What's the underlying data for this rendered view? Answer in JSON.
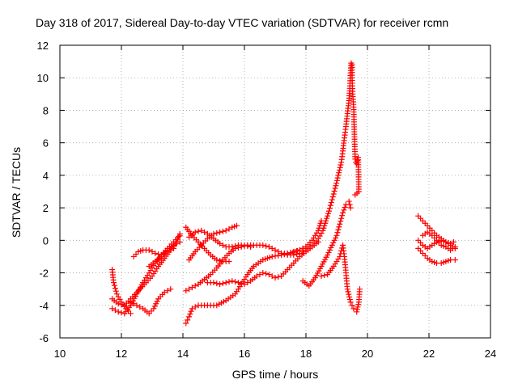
{
  "chart_data": {
    "type": "scatter",
    "title": "Day 318 of 2017, Sidereal Day-to-day VTEC variation (SDTVAR) for receiver rcmn",
    "xlabel": "GPS time / hours",
    "ylabel": "SDTVAR / TECUs",
    "xlim": [
      10,
      24
    ],
    "ylim": [
      -6,
      12
    ],
    "xticks": [
      10,
      12,
      14,
      16,
      18,
      20,
      22,
      24
    ],
    "yticks": [
      -6,
      -4,
      -2,
      0,
      2,
      4,
      6,
      8,
      10,
      12
    ],
    "grid": true,
    "marker": "+",
    "color": "#ff0000",
    "series": [
      {
        "name": "s1",
        "points": [
          [
            11.7,
            -1.8
          ],
          [
            11.75,
            -2.6
          ],
          [
            11.85,
            -3.3
          ],
          [
            12.0,
            -3.8
          ],
          [
            12.15,
            -4.2
          ],
          [
            12.3,
            -4.5
          ]
        ]
      },
      {
        "name": "s2",
        "points": [
          [
            11.7,
            -3.6
          ],
          [
            11.9,
            -3.9
          ],
          [
            12.1,
            -4.0
          ],
          [
            12.3,
            -3.6
          ],
          [
            12.5,
            -3.2
          ],
          [
            12.8,
            -2.6
          ],
          [
            13.0,
            -2.2
          ],
          [
            13.2,
            -1.6
          ],
          [
            13.4,
            -1.1
          ],
          [
            13.6,
            -0.6
          ],
          [
            13.8,
            -0.1
          ],
          [
            13.9,
            0.4
          ]
        ]
      },
      {
        "name": "s3",
        "points": [
          [
            11.7,
            -4.2
          ],
          [
            11.9,
            -4.4
          ],
          [
            12.1,
            -4.5
          ],
          [
            12.3,
            -4.0
          ],
          [
            12.5,
            -3.3
          ],
          [
            12.7,
            -2.6
          ],
          [
            12.9,
            -2.0
          ],
          [
            13.1,
            -1.4
          ],
          [
            13.3,
            -0.9
          ],
          [
            13.5,
            -0.5
          ],
          [
            13.7,
            -0.1
          ],
          [
            13.9,
            0.3
          ]
        ]
      },
      {
        "name": "s4",
        "points": [
          [
            12.4,
            -1.0
          ],
          [
            12.55,
            -0.7
          ],
          [
            12.7,
            -0.6
          ],
          [
            12.9,
            -0.6
          ],
          [
            13.1,
            -0.8
          ],
          [
            13.3,
            -0.9
          ],
          [
            13.5,
            -0.7
          ],
          [
            13.7,
            -0.5
          ]
        ]
      },
      {
        "name": "s5",
        "points": [
          [
            12.3,
            -3.8
          ],
          [
            12.5,
            -4.0
          ],
          [
            12.7,
            -4.2
          ],
          [
            12.9,
            -4.5
          ],
          [
            13.05,
            -4.2
          ],
          [
            13.2,
            -3.6
          ],
          [
            13.4,
            -3.2
          ],
          [
            13.6,
            -3.0
          ]
        ]
      },
      {
        "name": "s6",
        "points": [
          [
            12.9,
            -1.6
          ],
          [
            13.1,
            -1.3
          ],
          [
            13.3,
            -1.0
          ],
          [
            13.5,
            -0.6
          ],
          [
            13.7,
            -0.3
          ],
          [
            13.9,
            -0.1
          ]
        ]
      },
      {
        "name": "s7",
        "points": [
          [
            14.1,
            -5.1
          ],
          [
            14.2,
            -4.7
          ],
          [
            14.3,
            -4.2
          ],
          [
            14.5,
            -4.0
          ],
          [
            14.8,
            -4.0
          ],
          [
            15.1,
            -4.0
          ],
          [
            15.4,
            -3.7
          ],
          [
            15.7,
            -3.3
          ],
          [
            15.9,
            -2.7
          ],
          [
            16.1,
            -2.1
          ],
          [
            16.3,
            -1.6
          ],
          [
            16.6,
            -1.2
          ],
          [
            16.9,
            -1.0
          ],
          [
            17.2,
            -0.9
          ],
          [
            17.5,
            -0.8
          ],
          [
            17.8,
            -0.6
          ],
          [
            18.0,
            -0.4
          ]
        ]
      },
      {
        "name": "s8",
        "points": [
          [
            14.1,
            -3.1
          ],
          [
            14.3,
            -2.9
          ],
          [
            14.5,
            -2.7
          ],
          [
            14.7,
            -2.4
          ],
          [
            14.9,
            -2.1
          ],
          [
            15.1,
            -1.7
          ],
          [
            15.3,
            -1.2
          ],
          [
            15.5,
            -0.8
          ],
          [
            15.7,
            -0.5
          ],
          [
            15.9,
            -0.4
          ],
          [
            16.1,
            -0.3
          ],
          [
            16.3,
            -0.3
          ]
        ]
      },
      {
        "name": "s9",
        "points": [
          [
            14.1,
            0.8
          ],
          [
            14.3,
            0.3
          ],
          [
            14.5,
            -0.1
          ],
          [
            14.7,
            -0.5
          ],
          [
            14.9,
            -0.9
          ],
          [
            15.1,
            -1.2
          ],
          [
            15.3,
            -1.3
          ],
          [
            15.5,
            -1.3
          ]
        ]
      },
      {
        "name": "s10",
        "points": [
          [
            14.2,
            -1.2
          ],
          [
            14.4,
            -0.7
          ],
          [
            14.6,
            -0.3
          ],
          [
            14.8,
            0.1
          ],
          [
            15.0,
            0.4
          ],
          [
            15.2,
            0.5
          ],
          [
            15.4,
            0.6
          ],
          [
            15.6,
            0.8
          ],
          [
            15.75,
            0.9
          ]
        ]
      },
      {
        "name": "s11",
        "points": [
          [
            14.2,
            0.2
          ],
          [
            14.4,
            0.5
          ],
          [
            14.6,
            0.6
          ],
          [
            14.8,
            0.4
          ],
          [
            15.0,
            0.1
          ],
          [
            15.2,
            -0.2
          ],
          [
            15.4,
            -0.4
          ],
          [
            15.6,
            -0.4
          ],
          [
            15.8,
            -0.3
          ],
          [
            16.0,
            -0.3
          ],
          [
            16.2,
            -0.4
          ]
        ]
      },
      {
        "name": "s12",
        "points": [
          [
            14.8,
            -2.6
          ],
          [
            15.0,
            -2.6
          ],
          [
            15.2,
            -2.7
          ],
          [
            15.4,
            -2.6
          ],
          [
            15.6,
            -2.5
          ],
          [
            15.8,
            -2.6
          ],
          [
            16.0,
            -2.7
          ],
          [
            16.2,
            -2.5
          ],
          [
            16.4,
            -2.2
          ],
          [
            16.6,
            -2.0
          ],
          [
            16.8,
            -2.1
          ],
          [
            17.0,
            -2.3
          ],
          [
            17.2,
            -2.2
          ],
          [
            17.4,
            -1.8
          ],
          [
            17.6,
            -1.4
          ],
          [
            17.8,
            -1.0
          ],
          [
            18.0,
            -0.7
          ],
          [
            18.2,
            -0.4
          ],
          [
            18.4,
            -0.1
          ]
        ]
      },
      {
        "name": "s13",
        "points": [
          [
            16.4,
            -0.3
          ],
          [
            16.6,
            -0.3
          ],
          [
            16.8,
            -0.4
          ],
          [
            17.0,
            -0.6
          ],
          [
            17.2,
            -0.8
          ],
          [
            17.4,
            -0.9
          ],
          [
            17.6,
            -0.9
          ],
          [
            17.8,
            -0.8
          ],
          [
            18.0,
            -0.6
          ],
          [
            18.2,
            -0.3
          ],
          [
            18.4,
            0.1
          ],
          [
            18.55,
            0.6
          ],
          [
            18.65,
            1.2
          ],
          [
            18.75,
            1.8
          ],
          [
            18.85,
            2.5
          ],
          [
            18.95,
            3.2
          ],
          [
            19.05,
            4.0
          ],
          [
            19.15,
            4.8
          ],
          [
            19.2,
            5.5
          ],
          [
            19.25,
            6.3
          ],
          [
            19.3,
            7.0
          ],
          [
            19.35,
            7.8
          ],
          [
            19.4,
            8.6
          ],
          [
            19.43,
            9.5
          ],
          [
            19.45,
            10.3
          ],
          [
            19.47,
            10.9
          ]
        ]
      },
      {
        "name": "s14",
        "points": [
          [
            17.2,
            -0.8
          ],
          [
            17.4,
            -0.8
          ],
          [
            17.6,
            -0.7
          ],
          [
            17.8,
            -0.6
          ],
          [
            18.0,
            -0.4
          ],
          [
            18.2,
            0.0
          ],
          [
            18.4,
            0.6
          ],
          [
            18.5,
            1.2
          ]
        ]
      },
      {
        "name": "s15",
        "points": [
          [
            17.9,
            -2.5
          ],
          [
            18.1,
            -2.8
          ],
          [
            18.3,
            -2.3
          ],
          [
            18.5,
            -1.6
          ],
          [
            18.7,
            -0.9
          ],
          [
            18.85,
            -0.3
          ],
          [
            19.0,
            0.3
          ],
          [
            19.1,
            1.0
          ],
          [
            19.2,
            1.7
          ],
          [
            19.3,
            2.2
          ],
          [
            19.4,
            2.4
          ],
          [
            19.45,
            2.0
          ]
        ]
      },
      {
        "name": "s16",
        "points": [
          [
            18.5,
            -2.2
          ],
          [
            18.7,
            -2.1
          ],
          [
            18.9,
            -1.6
          ],
          [
            19.1,
            -1.0
          ],
          [
            19.2,
            -0.3
          ],
          [
            19.25,
            -1.0
          ],
          [
            19.3,
            -2.0
          ],
          [
            19.35,
            -3.0
          ],
          [
            19.45,
            -3.8
          ],
          [
            19.55,
            -4.2
          ],
          [
            19.65,
            -4.4
          ],
          [
            19.72,
            -3.8
          ],
          [
            19.75,
            -3.0
          ]
        ]
      },
      {
        "name": "s17",
        "points": [
          [
            19.5,
            10.8
          ],
          [
            19.5,
            10.0
          ],
          [
            19.52,
            9.0
          ],
          [
            19.55,
            8.2
          ],
          [
            19.6,
            5.0
          ],
          [
            19.62,
            4.8
          ],
          [
            19.65,
            4.7
          ],
          [
            19.7,
            5.1
          ],
          [
            19.72,
            3.0
          ],
          [
            19.6,
            2.8
          ]
        ]
      },
      {
        "name": "s18",
        "points": [
          [
            21.65,
            1.5
          ],
          [
            21.8,
            1.2
          ],
          [
            21.95,
            0.9
          ],
          [
            22.1,
            0.6
          ],
          [
            22.25,
            0.3
          ],
          [
            22.4,
            0.1
          ],
          [
            22.55,
            -0.1
          ],
          [
            22.7,
            -0.2
          ],
          [
            22.8,
            -0.1
          ]
        ]
      },
      {
        "name": "s19",
        "points": [
          [
            21.65,
            -0.5
          ],
          [
            21.8,
            -0.8
          ],
          [
            21.95,
            -1.1
          ],
          [
            22.1,
            -1.3
          ],
          [
            22.25,
            -1.4
          ],
          [
            22.4,
            -1.4
          ],
          [
            22.55,
            -1.3
          ],
          [
            22.7,
            -1.2
          ],
          [
            22.85,
            -1.2
          ]
        ]
      },
      {
        "name": "s20",
        "points": [
          [
            21.65,
            0.0
          ],
          [
            21.8,
            -0.3
          ],
          [
            21.95,
            -0.5
          ],
          [
            22.1,
            -0.3
          ],
          [
            22.25,
            -0.1
          ],
          [
            22.4,
            0.0
          ],
          [
            22.55,
            -0.1
          ],
          [
            22.7,
            -0.3
          ],
          [
            22.85,
            -0.5
          ]
        ]
      },
      {
        "name": "s21",
        "points": [
          [
            21.8,
            0.3
          ],
          [
            21.95,
            0.5
          ],
          [
            22.1,
            0.3
          ],
          [
            22.25,
            0.0
          ],
          [
            22.4,
            -0.3
          ],
          [
            22.55,
            -0.4
          ],
          [
            22.7,
            -0.6
          ],
          [
            22.85,
            -0.4
          ]
        ]
      }
    ]
  }
}
